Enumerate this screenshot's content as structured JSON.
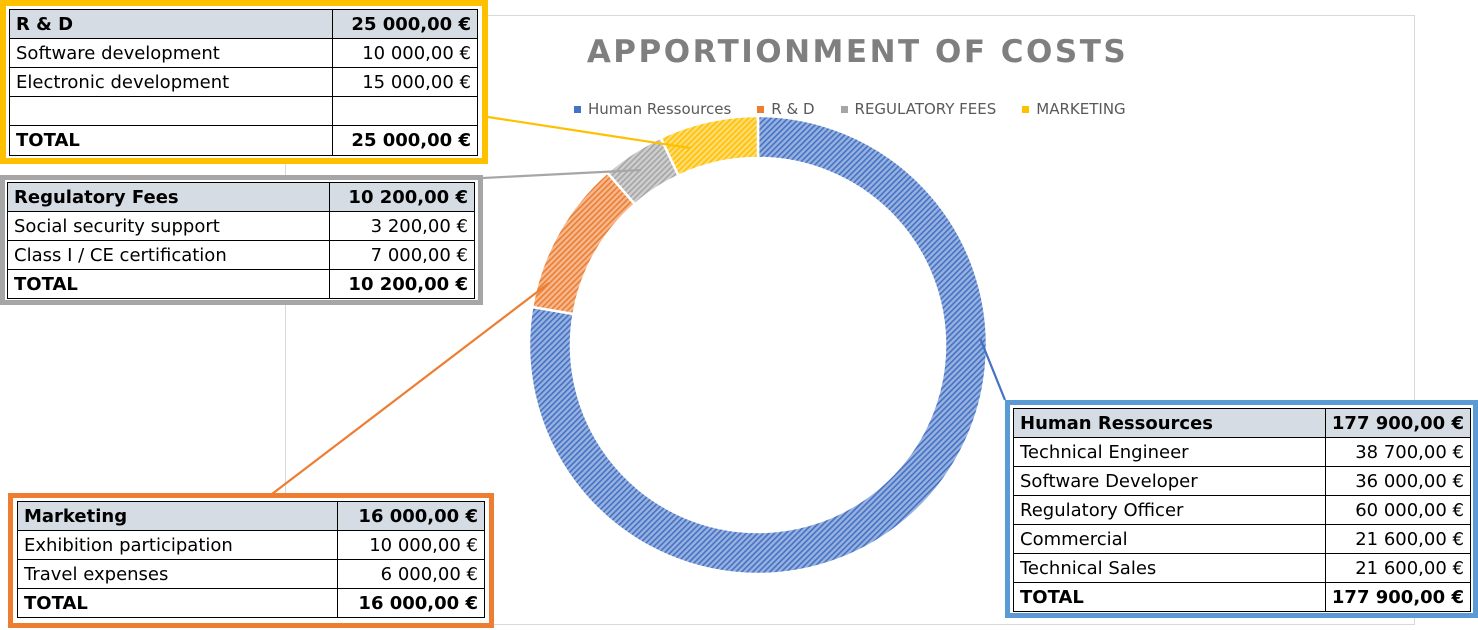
{
  "chart_data": {
    "type": "pie",
    "subtype": "doughnut",
    "title": "APPORTIONMENT OF COSTS",
    "legend_position": "top",
    "categories": [
      "Human Ressources",
      "R & D",
      "REGULATORY FEES",
      "MARKETING"
    ],
    "values": [
      177900,
      25000,
      10200,
      16000
    ],
    "colors": [
      "#4472c4",
      "#ed7d31",
      "#a5a5a5",
      "#ffc000"
    ],
    "fill_pattern": "dense diagonal hatch"
  },
  "tables": {
    "rd": {
      "header": {
        "label": "R & D",
        "amount": "25 000,00 €"
      },
      "rows": [
        {
          "label": "Software development",
          "amount": "10 000,00 €"
        },
        {
          "label": "Electronic development",
          "amount": "15 000,00 €"
        },
        {
          "label": "",
          "amount": ""
        }
      ],
      "total": {
        "label": "TOTAL",
        "amount": "25 000,00 €"
      },
      "border_color": "#ffc000"
    },
    "regulatory": {
      "header": {
        "label": "Regulatory Fees",
        "amount": "10 200,00 €"
      },
      "rows": [
        {
          "label": "Social security support",
          "amount": "3 200,00 €"
        },
        {
          "label": "Class I / CE certification",
          "amount": "7 000,00 €"
        }
      ],
      "total": {
        "label": "TOTAL",
        "amount": "10 200,00 €"
      },
      "border_color": "#a6a6a6"
    },
    "marketing": {
      "header": {
        "label": "Marketing",
        "amount": "16 000,00 €"
      },
      "rows": [
        {
          "label": "Exhibition participation",
          "amount": "10 000,00 €"
        },
        {
          "label": "Travel expenses",
          "amount": "6 000,00 €"
        }
      ],
      "total": {
        "label": "TOTAL",
        "amount": "16 000,00 €"
      },
      "border_color": "#ed7d31"
    },
    "human_resources": {
      "header": {
        "label": "Human Ressources",
        "amount": "177 900,00 €"
      },
      "rows": [
        {
          "label": "Technical Engineer",
          "amount": "38 700,00 €"
        },
        {
          "label": "Software Developer",
          "amount": "36 000,00 €"
        },
        {
          "label": "Regulatory Officer",
          "amount": "60 000,00 €"
        },
        {
          "label": "Commercial",
          "amount": "21 600,00 €"
        },
        {
          "label": "Technical Sales",
          "amount": "21 600,00 €"
        }
      ],
      "total": {
        "label": "TOTAL",
        "amount": "177 900,00 €"
      },
      "border_color": "#5b9bd5"
    }
  }
}
